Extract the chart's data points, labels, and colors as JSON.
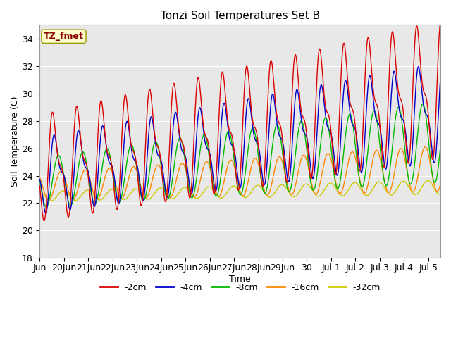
{
  "title": "Tonzi Soil Temperatures Set B",
  "xlabel": "Time",
  "ylabel": "Soil Temperature (C)",
  "annotation_text": "TZ_fmet",
  "annotation_color": "#8B0000",
  "annotation_bg": "#FFFFCC",
  "ylim": [
    18,
    35
  ],
  "xlim_start": 0,
  "xlim_end": 16.5,
  "tick_positions": [
    0,
    1,
    2,
    3,
    4,
    5,
    6,
    7,
    8,
    9,
    10,
    11,
    12,
    13,
    14,
    15,
    16
  ],
  "tick_labels": [
    "Jun",
    "20Jun",
    "21Jun",
    "22Jun",
    "23Jun",
    "24Jun",
    "25Jun",
    "26Jun",
    "27Jun",
    "28Jun",
    "29Jun",
    "30",
    "Jul 1",
    "Jul 2",
    "Jul 3",
    "Jul 4",
    "Jul 5"
  ],
  "yticks": [
    18,
    20,
    22,
    24,
    26,
    28,
    30,
    32,
    34
  ],
  "series": {
    "-2cm": {
      "color": "#DD0000",
      "linewidth": 1.0
    },
    "-4cm": {
      "color": "#0000CC",
      "linewidth": 1.0
    },
    "-8cm": {
      "color": "#00BB00",
      "linewidth": 1.0
    },
    "-16cm": {
      "color": "#FF8800",
      "linewidth": 1.0
    },
    "-32cm": {
      "color": "#CCCC00",
      "linewidth": 1.0
    }
  },
  "bg_color": "#E8E8E8",
  "fig_bg": "#FFFFFF",
  "grid_color": "#FFFFFF",
  "legend_colors": [
    "#DD0000",
    "#0000CC",
    "#00BB00",
    "#FF8800",
    "#CCCC00"
  ],
  "legend_labels": [
    "-2cm",
    "-4cm",
    "-8cm",
    "-16cm",
    "-32cm"
  ]
}
